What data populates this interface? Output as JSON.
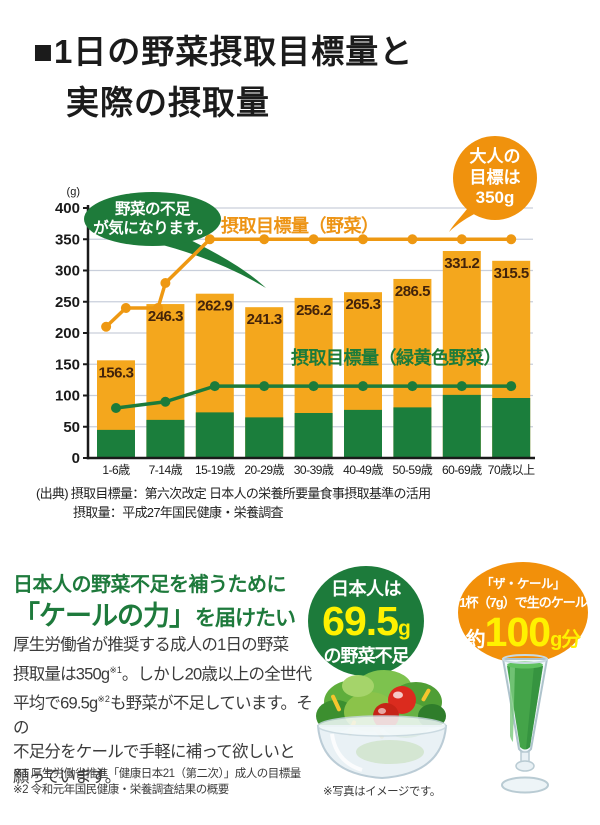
{
  "title": {
    "bullet": "■",
    "line1": "1日の野菜摂取目標量と",
    "line2": "実際の摂取量"
  },
  "chart_data": {
    "type": "bar",
    "unit_label": "(g)",
    "categories": [
      "1-6歳",
      "7-14歳",
      "15-19歳",
      "20-29歳",
      "30-39歳",
      "40-49歳",
      "50-59歳",
      "60-69歳",
      "70歳以上"
    ],
    "ylim": [
      0,
      400
    ],
    "ytick_step": 50,
    "grid": true,
    "bar_series": [
      {
        "name": "摂取量（野菜）",
        "color": "#F4A71D",
        "label_color": "#43230A",
        "show_labels": true,
        "values": [
          156.3,
          246.3,
          262.9,
          241.3,
          256.2,
          265.3,
          286.5,
          331.2,
          315.5
        ]
      },
      {
        "name": "摂取量（緑黄色野菜）",
        "color": "#1B7E3C",
        "show_labels": false,
        "values": [
          45,
          61,
          73,
          65,
          72,
          77,
          81,
          101,
          96
        ]
      }
    ],
    "line_series": [
      {
        "name": "摂取目標量（野菜）",
        "color": "#EE9812",
        "x": [
          -0.2,
          0.2,
          0.85,
          1.0,
          1.9,
          3,
          4,
          5,
          6,
          7,
          8
        ],
        "values": [
          210,
          240,
          240,
          280,
          350,
          350,
          350,
          350,
          350,
          350,
          350
        ]
      },
      {
        "name": "摂取目標量（緑黄色野菜）",
        "color": "#1C7B3A",
        "x": [
          0,
          1,
          2,
          3,
          4,
          5,
          6,
          7,
          8
        ],
        "values": [
          80,
          90,
          115,
          115,
          115,
          115,
          115,
          115,
          115
        ]
      }
    ],
    "annotations": {
      "bubble": {
        "line1": "野菜の不足",
        "line2": "が気になります。",
        "bg": "#1E7B3A"
      },
      "badge": {
        "line1": "大人の",
        "line2": "目標は",
        "line3": "350g",
        "bg": "#F0920D"
      },
      "label_vegetables": "摂取目標量（野菜）",
      "label_green_vegetables": "摂取目標量（緑黄色野菜）"
    },
    "axis_color": "#1a1a1a",
    "grid_color": "#C9CFDB"
  },
  "source": {
    "line1": "(出典) 摂取目標量：第六次改定 日本人の栄養所要量食事摂取基準の活用",
    "line2": "摂取量：平成27年国民健康・栄養調査"
  },
  "message": {
    "heading_line1": "日本人の野菜不足を補うために",
    "heading_line2_em": "「ケールの力」",
    "heading_line2_rest": "を届けたい",
    "body": [
      {
        "segments": [
          {
            "t": "厚生労働省が推奨する成人の1日の野菜"
          }
        ]
      },
      {
        "segments": [
          {
            "t": "摂取量は350g"
          },
          {
            "sup": "※1"
          },
          {
            "t": "。しかし20歳以上の全世代"
          }
        ]
      },
      {
        "segments": [
          {
            "t": "平均で69.5g"
          },
          {
            "sup": "※2"
          },
          {
            "t": "も野菜が不足しています。その"
          }
        ]
      },
      {
        "segments": [
          {
            "t": "不足分をケールで手軽に補って欲しいと"
          }
        ]
      },
      {
        "segments": [
          {
            "t": "願っています。"
          }
        ]
      }
    ],
    "footnote1": "※1 厚生労働省推進「健康日本21（第二次）」成人の目標量",
    "footnote2": "※2 令和元年国民健康・栄養調査結果の概要"
  },
  "deficit_badge": {
    "line1": "日本人は",
    "value": "69.5",
    "unit": "g",
    "line3": "の野菜不足",
    "bg": "#1D7B3B",
    "accent": "#FFF100"
  },
  "kale_badge": {
    "line1": "「ザ・ケール」",
    "line2": "1杯（7g）で生のケール",
    "prefix": "約",
    "value": "100",
    "suffix": "g分",
    "bg": "#F2900A",
    "accent": "#FFF100"
  },
  "photo_caption": "※写真はイメージです。"
}
